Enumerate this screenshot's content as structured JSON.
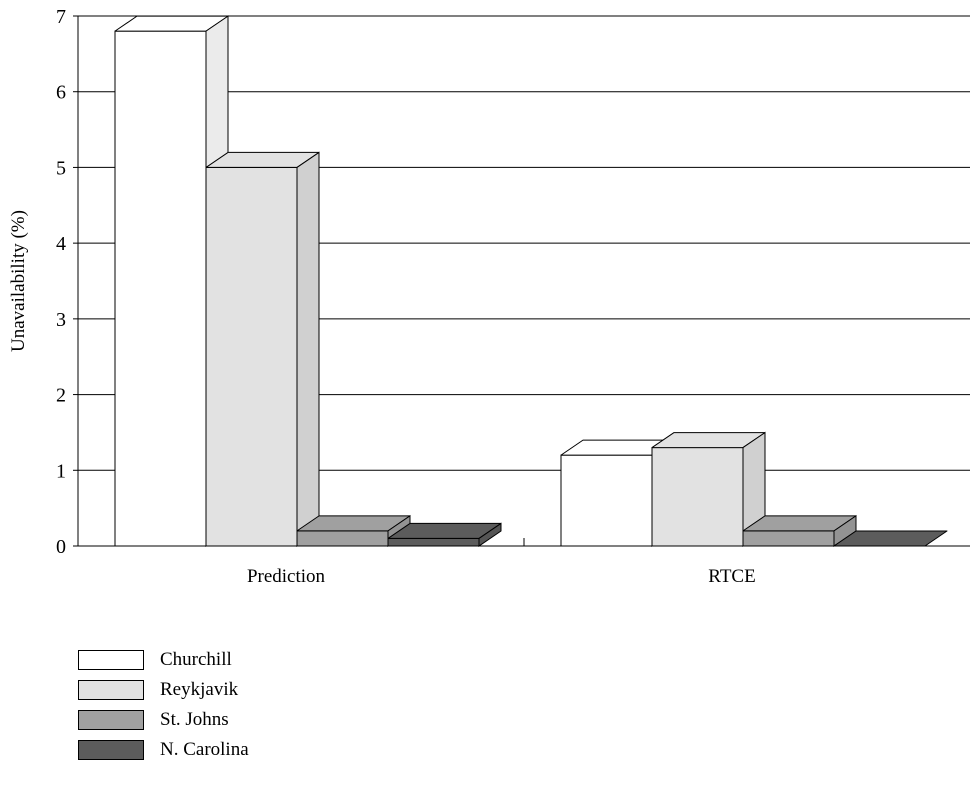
{
  "chart_data": {
    "type": "bar",
    "title": "",
    "xlabel": "",
    "ylabel": "Unavailability (%)",
    "ylim": [
      0,
      7
    ],
    "yticks": [
      "0",
      "1",
      "2",
      "3",
      "4",
      "5",
      "6",
      "7"
    ],
    "grid": true,
    "three_d": true,
    "legend_position": "bottom-left",
    "categories": [
      "Prediction",
      "RTCE"
    ],
    "series": [
      {
        "name": "Churchill",
        "values": [
          6.8,
          1.2
        ],
        "color": "#ffffff"
      },
      {
        "name": "Reykjavik",
        "values": [
          5.0,
          1.3
        ],
        "color": "#e2e2e2"
      },
      {
        "name": "St. Johns",
        "values": [
          0.2,
          0.2
        ],
        "color": "#a0a0a0"
      },
      {
        "name": "N. Carolina",
        "values": [
          0.1,
          0.0
        ],
        "color": "#5c5c5c"
      }
    ]
  }
}
